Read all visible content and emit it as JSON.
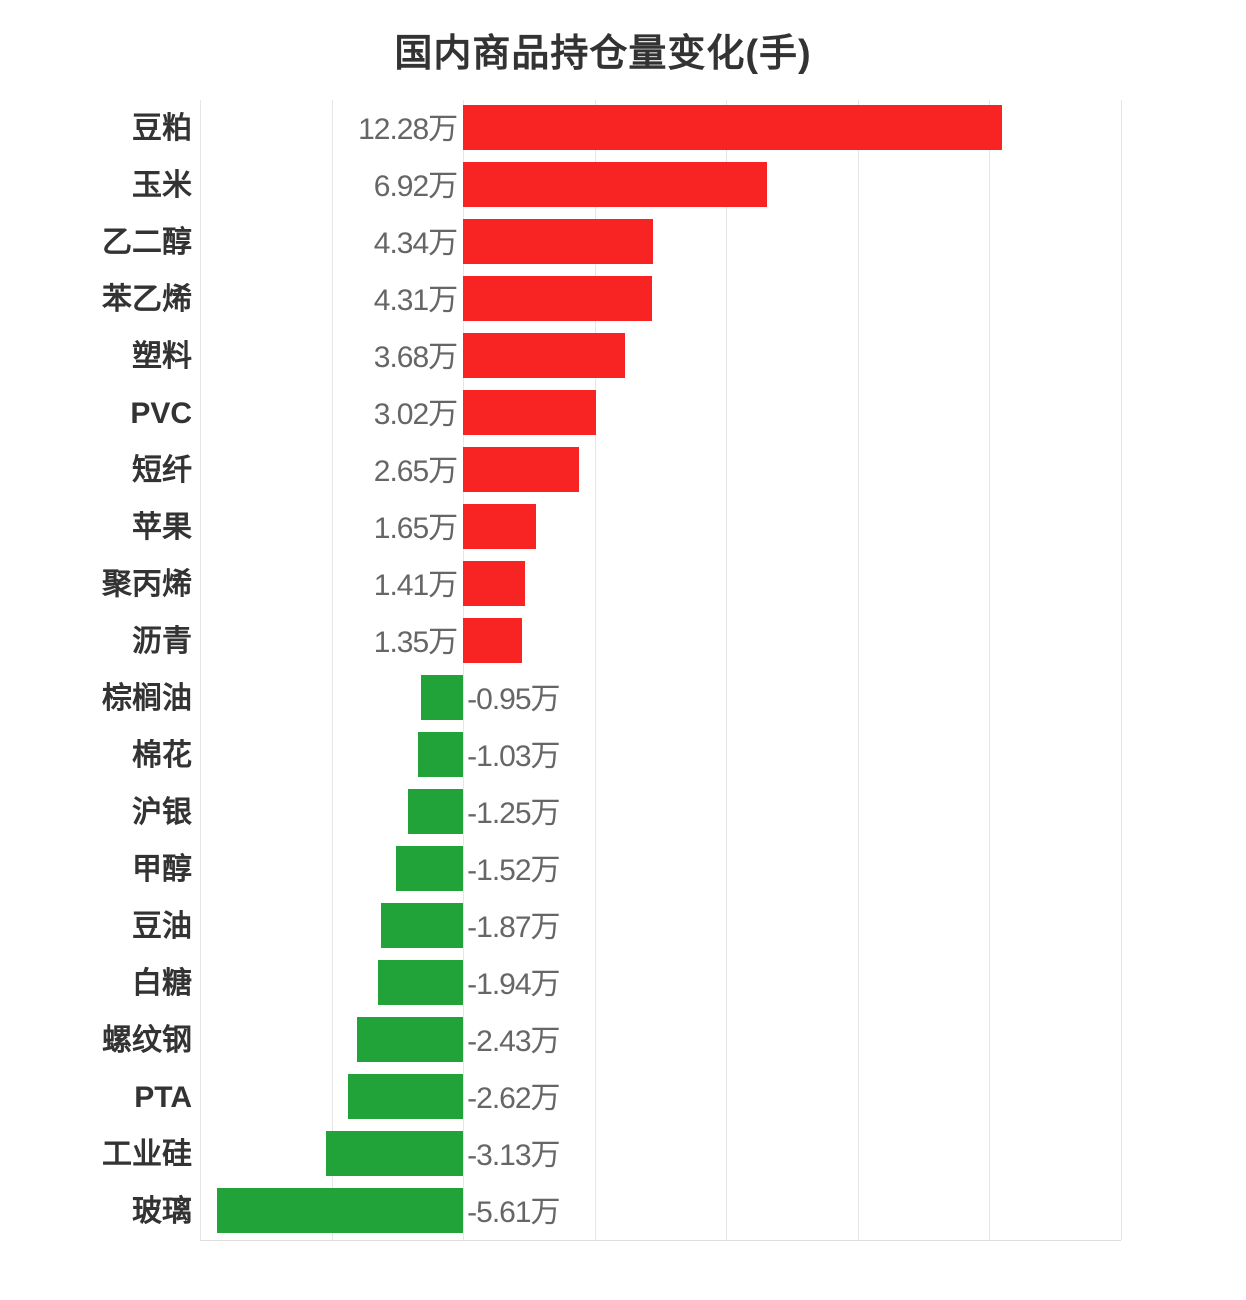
{
  "title": "国内商品持仓量变化(手)",
  "colors": {
    "positive": "#f82323",
    "negative": "#21a33a",
    "label": "#333333",
    "value": "#666666",
    "grid": "#e6e6e6"
  },
  "chart_data": {
    "type": "bar",
    "orientation": "horizontal",
    "title": "国内商品持仓量变化(手)",
    "unit": "万",
    "xlabel": "",
    "ylabel": "",
    "xlim": [
      -6,
      15
    ],
    "grid": true,
    "gridline_step": 3,
    "legend": "none",
    "categories": [
      "豆粕",
      "玉米",
      "乙二醇",
      "苯乙烯",
      "塑料",
      "PVC",
      "短纤",
      "苹果",
      "聚丙烯",
      "沥青",
      "棕榈油",
      "棉花",
      "沪银",
      "甲醇",
      "豆油",
      "白糖",
      "螺纹钢",
      "PTA",
      "工业硅",
      "玻璃"
    ],
    "values": [
      12.28,
      6.92,
      4.34,
      4.31,
      3.68,
      3.02,
      2.65,
      1.65,
      1.41,
      1.35,
      -0.95,
      -1.03,
      -1.25,
      -1.52,
      -1.87,
      -1.94,
      -2.43,
      -2.62,
      -3.13,
      -5.61
    ],
    "labels": [
      "12.28万",
      "6.92万",
      "4.34万",
      "4.31万",
      "3.68万",
      "3.02万",
      "2.65万",
      "1.65万",
      "1.41万",
      "1.35万",
      "-0.95万",
      "-1.03万",
      "-1.25万",
      "-1.52万",
      "-1.87万",
      "-1.94万",
      "-2.43万",
      "-2.62万",
      "-3.13万",
      "-5.61万"
    ]
  }
}
